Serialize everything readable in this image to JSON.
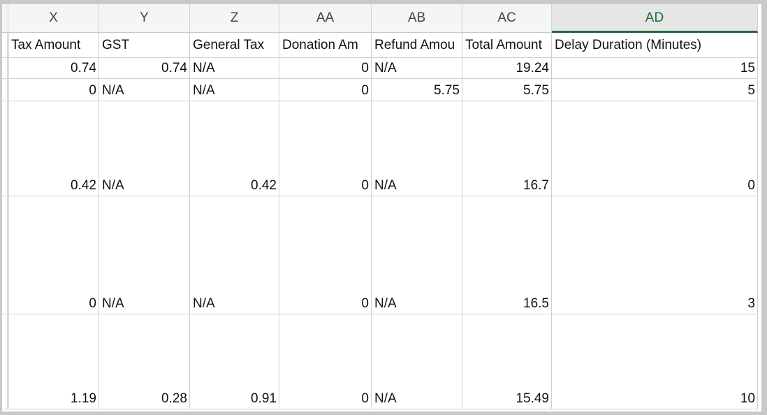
{
  "columns": [
    {
      "letter": "X",
      "header": "Tax Amount"
    },
    {
      "letter": "Y",
      "header": "GST"
    },
    {
      "letter": "Z",
      "header": "General Tax"
    },
    {
      "letter": "AA",
      "header": "Donation Am"
    },
    {
      "letter": "AB",
      "header": "Refund Amou"
    },
    {
      "letter": "AC",
      "header": "Total Amount"
    },
    {
      "letter": "AD",
      "header": "Delay Duration (Minutes)"
    }
  ],
  "selected_column": "AD",
  "accent_color": "#1e6b37",
  "rows": [
    [
      "0.74",
      "0.74",
      "N/A",
      "0",
      "N/A",
      "19.24",
      "15"
    ],
    [
      "0",
      "N/A",
      "N/A",
      "0",
      "5.75",
      "5.75",
      "5"
    ],
    [
      "0.42",
      "N/A",
      "0.42",
      "0",
      "N/A",
      "16.7",
      "0"
    ],
    [
      "0",
      "N/A",
      "N/A",
      "0",
      "N/A",
      "16.5",
      "3"
    ],
    [
      "1.19",
      "0.28",
      "0.91",
      "0",
      "N/A",
      "15.49",
      "10"
    ]
  ]
}
